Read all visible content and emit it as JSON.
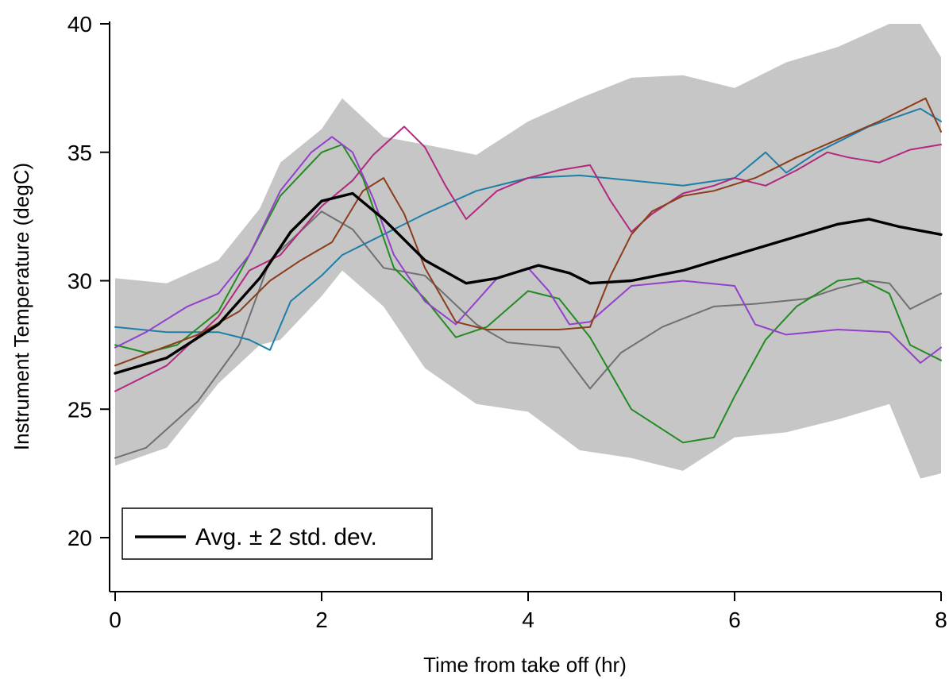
{
  "chart_data": {
    "type": "line",
    "title": "",
    "xlabel": "Time from take off (hr)",
    "ylabel": "Instrument Temperature (degC)",
    "xlim": [
      0,
      8
    ],
    "ylim": [
      17.7,
      40
    ],
    "xticks": [
      0,
      2,
      4,
      6,
      8
    ],
    "yticks": [
      20,
      25,
      30,
      35,
      40
    ],
    "grid": false,
    "legend": {
      "placement": "bottom-left",
      "entries": [
        {
          "label": "Avg. ± 2 std. dev.",
          "color": "#000000"
        }
      ]
    },
    "band": {
      "color": "#c6c6c6",
      "x": [
        0,
        0.5,
        1.0,
        1.4,
        1.6,
        2.0,
        2.2,
        2.6,
        3.0,
        3.5,
        4.0,
        4.5,
        5.0,
        5.5,
        6.0,
        6.5,
        7.0,
        7.5,
        7.8,
        8.0
      ],
      "upper": [
        30.1,
        29.9,
        30.8,
        32.8,
        34.6,
        35.9,
        37.1,
        35.6,
        35.3,
        34.9,
        36.2,
        37.1,
        37.9,
        38.0,
        37.5,
        38.5,
        39.1,
        40.0,
        40.0,
        38.7
      ],
      "lower": [
        22.8,
        23.5,
        26.0,
        27.5,
        27.7,
        29.4,
        30.4,
        29.0,
        26.6,
        25.2,
        24.9,
        23.4,
        23.1,
        22.6,
        23.9,
        24.1,
        24.6,
        25.2,
        22.3,
        22.5
      ]
    },
    "series": [
      {
        "color": "#000000",
        "width": 3.4,
        "x": [
          0,
          0.5,
          1.0,
          1.4,
          1.7,
          2.0,
          2.3,
          2.6,
          3.0,
          3.4,
          3.7,
          4.1,
          4.4,
          4.6,
          5.0,
          5.5,
          6.0,
          6.5,
          7.0,
          7.3,
          7.6,
          8.0
        ],
        "y": [
          26.4,
          27.0,
          28.3,
          30.1,
          31.9,
          33.1,
          33.4,
          32.4,
          30.8,
          29.9,
          30.1,
          30.6,
          30.3,
          29.9,
          30.0,
          30.4,
          31.0,
          31.6,
          32.2,
          32.4,
          32.1,
          31.8
        ]
      },
      {
        "color": "#707070",
        "width": 2,
        "x": [
          0,
          0.3,
          0.8,
          1.2,
          1.5,
          2.0,
          2.3,
          2.6,
          3.0,
          3.5,
          3.8,
          4.3,
          4.6,
          4.9,
          5.3,
          5.8,
          6.2,
          6.7,
          7.0,
          7.3,
          7.5,
          7.7,
          8.0
        ],
        "y": [
          23.1,
          23.5,
          25.3,
          27.5,
          30.8,
          32.7,
          32.0,
          30.5,
          30.2,
          28.3,
          27.6,
          27.4,
          25.8,
          27.2,
          28.2,
          29.0,
          29.1,
          29.3,
          29.7,
          30.0,
          29.9,
          28.9,
          29.5
        ]
      },
      {
        "color": "#1d7fa8",
        "width": 2,
        "x": [
          0,
          0.5,
          1.0,
          1.3,
          1.5,
          1.7,
          2.0,
          2.2,
          2.5,
          3.0,
          3.5,
          4.0,
          4.5,
          5.0,
          5.5,
          6.0,
          6.3,
          6.5,
          6.8,
          7.3,
          7.8,
          8.0
        ],
        "y": [
          28.2,
          28.0,
          28.0,
          27.7,
          27.3,
          29.2,
          30.2,
          31.0,
          31.6,
          32.6,
          33.5,
          34.0,
          34.1,
          33.9,
          33.7,
          34.0,
          35.0,
          34.2,
          35.0,
          36.0,
          36.7,
          36.2
        ]
      },
      {
        "color": "#228b22",
        "width": 2,
        "x": [
          0,
          0.3,
          0.6,
          1.0,
          1.3,
          1.6,
          2.0,
          2.2,
          2.4,
          2.7,
          3.0,
          3.3,
          3.6,
          4.0,
          4.3,
          4.6,
          5.0,
          5.5,
          5.8,
          6.0,
          6.3,
          6.6,
          7.0,
          7.2,
          7.5,
          7.7,
          8.0
        ],
        "y": [
          27.5,
          27.2,
          27.5,
          28.8,
          31.0,
          33.3,
          35.0,
          35.3,
          34.0,
          30.5,
          29.3,
          27.8,
          28.2,
          29.6,
          29.3,
          27.8,
          25.0,
          23.7,
          23.9,
          25.5,
          27.7,
          29.0,
          30.0,
          30.1,
          29.5,
          27.5,
          26.9
        ]
      },
      {
        "color": "#9340cc",
        "width": 2,
        "x": [
          0,
          0.3,
          0.7,
          1.0,
          1.3,
          1.6,
          1.9,
          2.1,
          2.3,
          2.5,
          2.7,
          3.0,
          3.3,
          3.7,
          4.0,
          4.2,
          4.4,
          4.6,
          5.0,
          5.5,
          6.0,
          6.2,
          6.5,
          7.0,
          7.5,
          7.8,
          8.0
        ],
        "y": [
          27.4,
          28.0,
          29.0,
          29.5,
          31.0,
          33.5,
          35.0,
          35.6,
          35.0,
          33.2,
          31.0,
          29.2,
          28.3,
          30.1,
          30.5,
          29.6,
          28.3,
          28.4,
          29.8,
          30.0,
          29.8,
          28.3,
          27.9,
          28.1,
          28.0,
          26.8,
          27.4
        ]
      },
      {
        "color": "#b3287f",
        "width": 2,
        "x": [
          0,
          0.5,
          1.0,
          1.3,
          1.6,
          2.0,
          2.3,
          2.5,
          2.8,
          3.0,
          3.2,
          3.4,
          3.7,
          4.0,
          4.3,
          4.6,
          4.8,
          5.0,
          5.2,
          5.5,
          5.8,
          6.0,
          6.3,
          6.6,
          6.9,
          7.1,
          7.4,
          7.7,
          8.0
        ],
        "y": [
          25.7,
          26.7,
          28.6,
          30.4,
          31.0,
          32.9,
          33.9,
          34.9,
          36.0,
          35.2,
          33.7,
          32.4,
          33.5,
          34.0,
          34.3,
          34.5,
          33.1,
          31.9,
          32.6,
          33.4,
          33.7,
          34.0,
          33.7,
          34.3,
          35.0,
          34.8,
          34.6,
          35.1,
          35.3
        ]
      },
      {
        "color": "#8b3d1a",
        "width": 2,
        "x": [
          0,
          0.4,
          0.8,
          1.2,
          1.5,
          1.8,
          2.1,
          2.4,
          2.6,
          2.8,
          3.0,
          3.3,
          3.6,
          4.0,
          4.3,
          4.6,
          4.8,
          5.0,
          5.2,
          5.5,
          5.8,
          6.2,
          6.6,
          7.0,
          7.4,
          7.7,
          7.85,
          8.0
        ],
        "y": [
          26.7,
          27.3,
          27.9,
          28.8,
          30.0,
          30.8,
          31.5,
          33.5,
          34.0,
          32.6,
          30.5,
          28.4,
          28.1,
          28.1,
          28.1,
          28.2,
          30.2,
          31.8,
          32.7,
          33.3,
          33.5,
          34.0,
          34.8,
          35.5,
          36.2,
          36.8,
          37.1,
          35.8
        ]
      }
    ]
  }
}
